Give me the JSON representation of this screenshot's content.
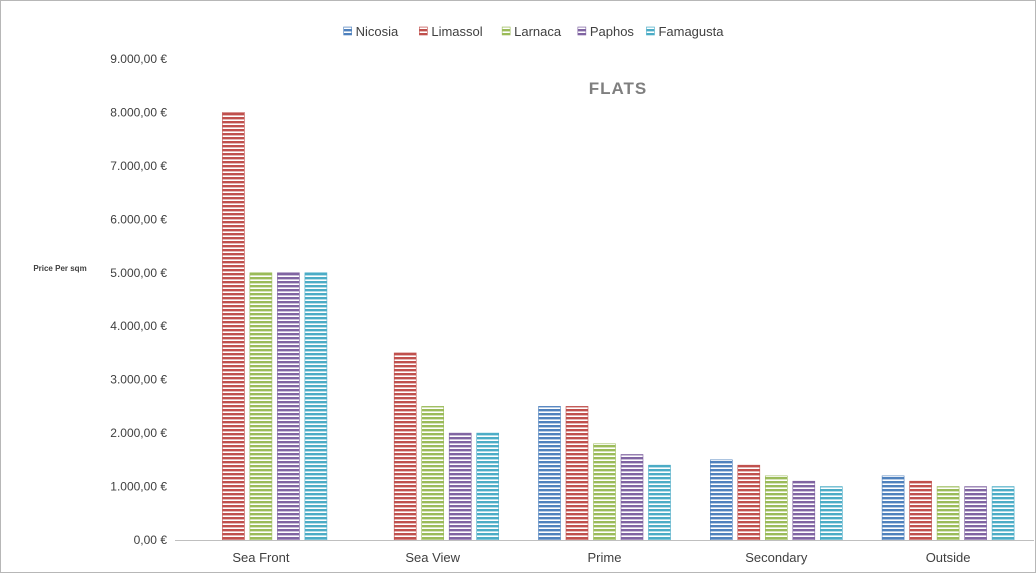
{
  "chart_data": {
    "type": "bar",
    "title": "FLATS",
    "ylabel": "Price Per sqm",
    "xlabel": "",
    "categories": [
      "Sea Front",
      "Sea View",
      "Prime",
      "Secondary",
      "Outside"
    ],
    "series": [
      {
        "name": "Nicosia",
        "color": "#4f81bd",
        "values": [
          0,
          0,
          2500,
          1500,
          1200
        ]
      },
      {
        "name": "Limassol",
        "color": "#c0504d",
        "values": [
          8000,
          3500,
          2500,
          1400,
          1100
        ]
      },
      {
        "name": "Larnaca",
        "color": "#9bbb59",
        "values": [
          5000,
          2500,
          1800,
          1200,
          1000
        ]
      },
      {
        "name": "Paphos",
        "color": "#8064a2",
        "values": [
          5000,
          2000,
          1600,
          1100,
          1000
        ]
      },
      {
        "name": "Famagusta",
        "color": "#4bacc6",
        "values": [
          5000,
          2000,
          1400,
          1000,
          1000
        ]
      }
    ],
    "ylim": [
      0,
      9000
    ],
    "yticks": [
      0,
      1000,
      2000,
      3000,
      4000,
      5000,
      6000,
      7000,
      8000,
      9000
    ],
    "ytick_labels": [
      "0,00 €",
      "1.000,00 €",
      "2.000,00 €",
      "3.000,00 €",
      "4.000,00 €",
      "5.000,00 €",
      "6.000,00 €",
      "7.000,00 €",
      "8.000,00 €",
      "9.000,00 €"
    ],
    "grid": false,
    "legend_position": "top",
    "bar_pattern": "horizontal-stripes"
  }
}
